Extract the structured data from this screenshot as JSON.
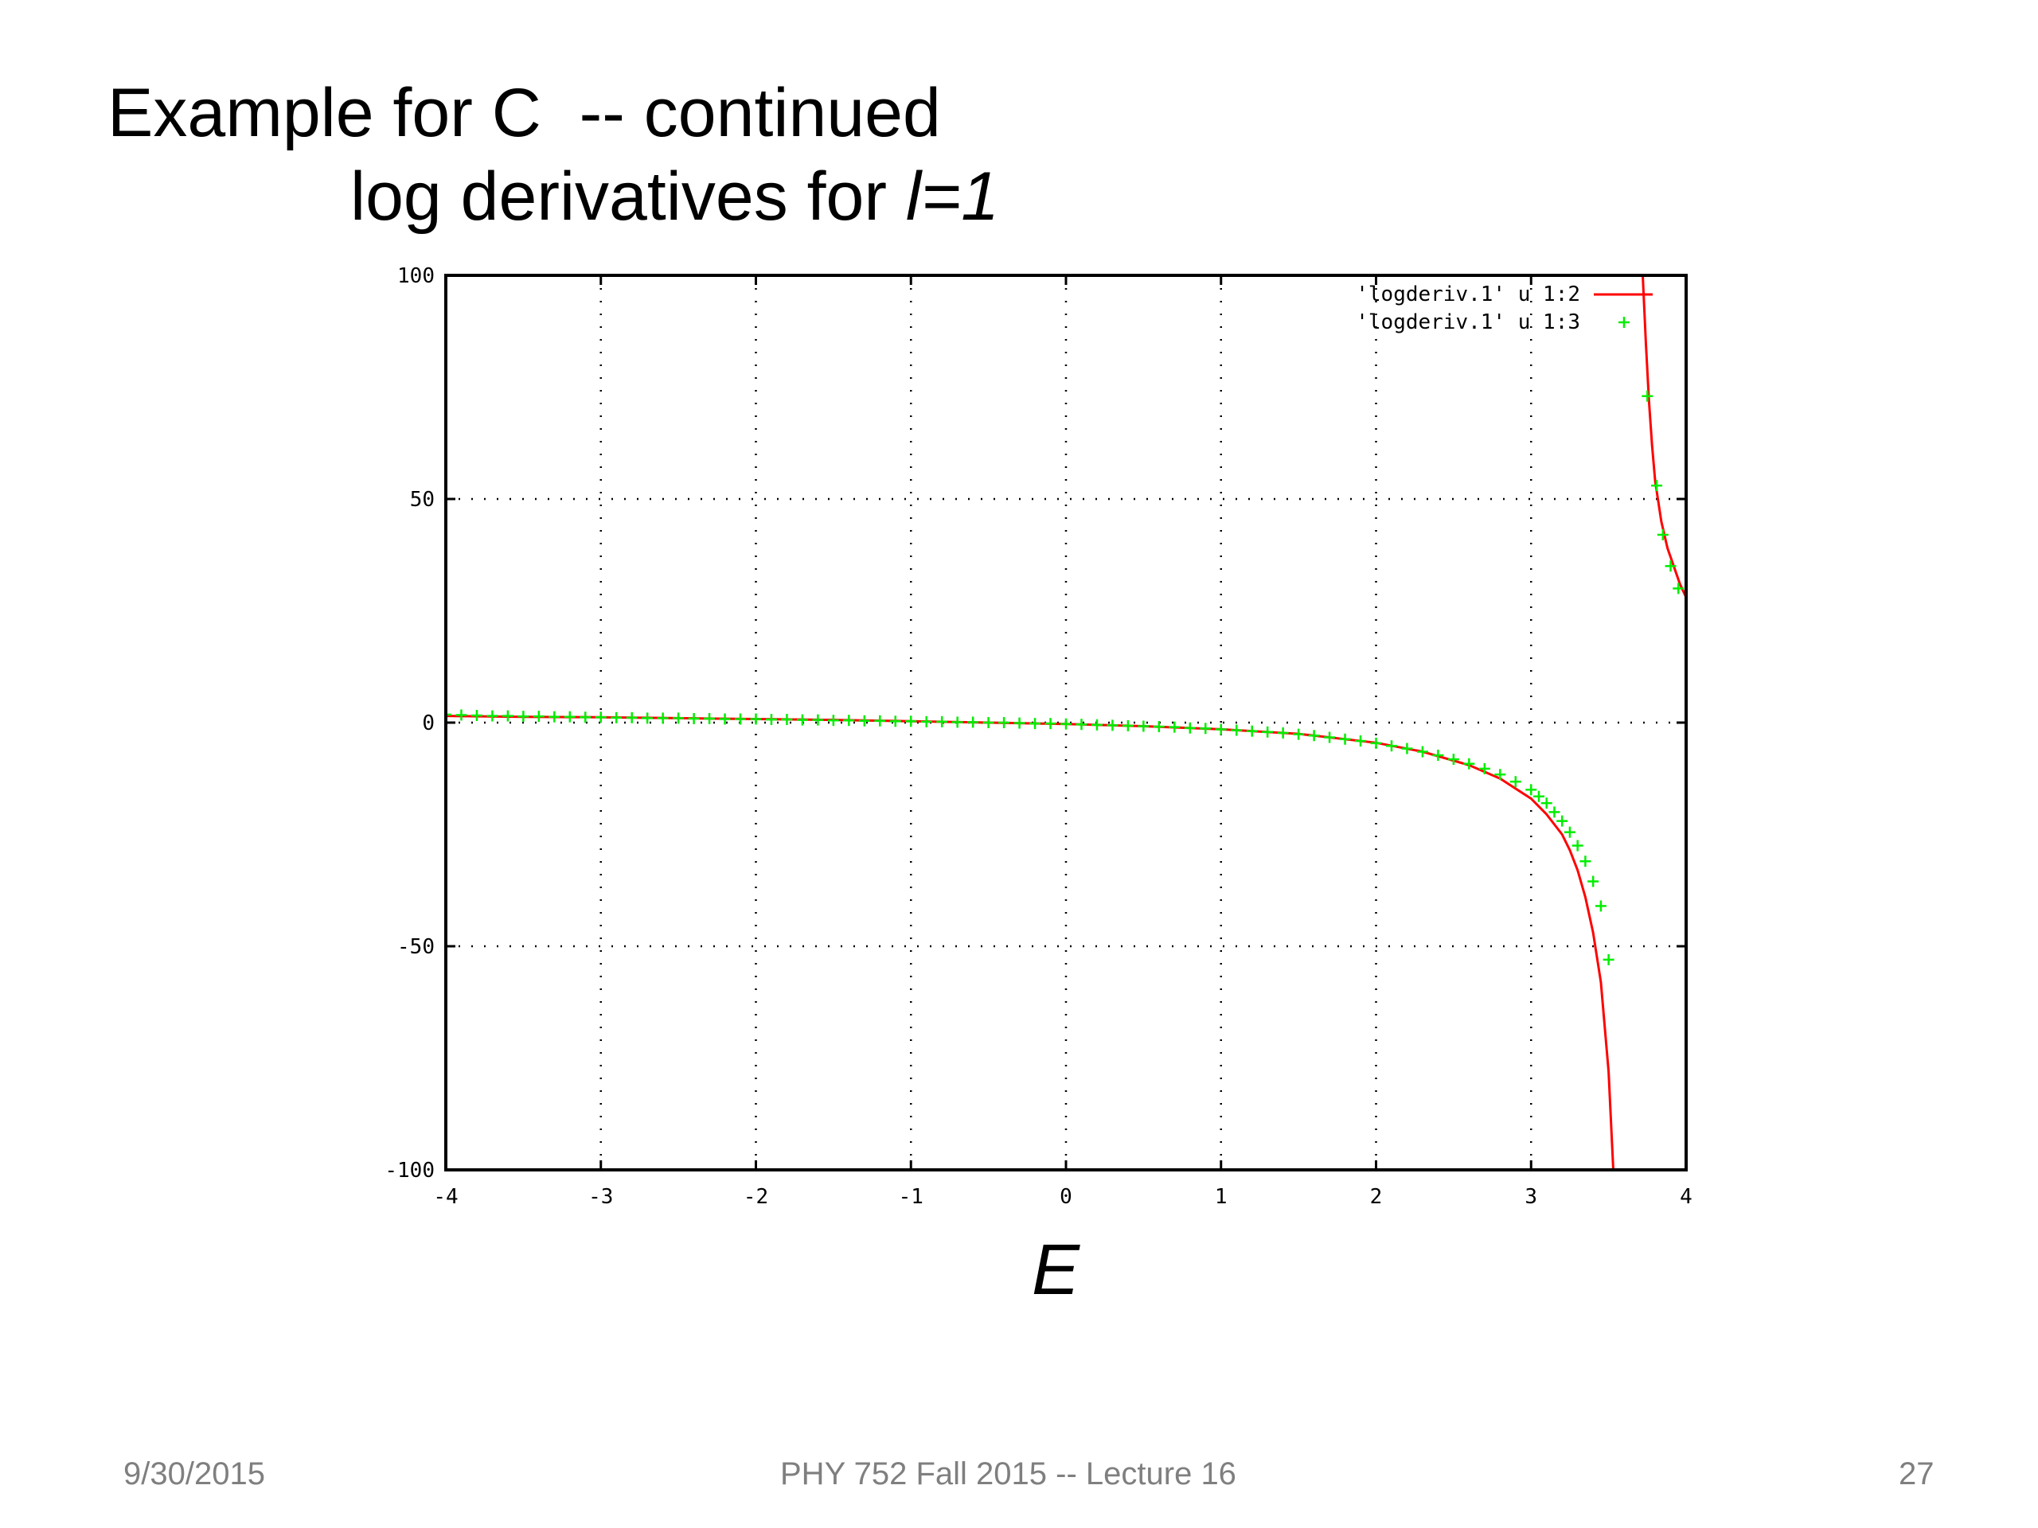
{
  "slide": {
    "title_line1": "Example for C  -- continued",
    "title_line2_prefix": "log derivatives for ",
    "title_line2_italic": "l=1"
  },
  "footer": {
    "date": "9/30/2015",
    "course": "PHY 752  Fall 2015 -- Lecture 16",
    "page": "27"
  },
  "colors": {
    "line": "#ff0000",
    "points": "#00ee00",
    "grid": "#000000",
    "frame": "#000000"
  },
  "chart_data": {
    "type": "line",
    "xlabel": "E",
    "xlim": [
      -4,
      4
    ],
    "ylim": [
      -100,
      100
    ],
    "xticks": [
      "-4",
      "-3",
      "-2",
      "-1",
      "0",
      "1",
      "2",
      "3",
      "4"
    ],
    "yticks": [
      "100",
      "50",
      "0",
      "-50",
      "-100"
    ],
    "grid": true,
    "legend_position": "top-right",
    "series": [
      {
        "name": "'logderiv.1' u 1:2",
        "style": "line",
        "branches": [
          {
            "x": [
              -4.0,
              -3.5,
              -3.0,
              -2.5,
              -2.0,
              -1.5,
              -1.0,
              -0.5,
              0.0,
              0.5,
              1.0,
              1.5,
              2.0,
              2.3,
              2.6,
              2.8,
              3.0,
              3.1,
              3.2,
              3.25,
              3.3,
              3.35,
              3.4,
              3.45,
              3.5,
              3.53
            ],
            "y": [
              1.5,
              1.3,
              1.2,
              1.0,
              0.8,
              0.6,
              0.3,
              0.0,
              -0.3,
              -0.8,
              -1.5,
              -2.5,
              -4.5,
              -6.5,
              -9.5,
              -12.5,
              -17.0,
              -20.5,
              -25.0,
              -28.5,
              -33.0,
              -39.0,
              -47.0,
              -58.0,
              -78.0,
              -100.0
            ]
          },
          {
            "x": [
              3.72,
              3.74,
              3.76,
              3.78,
              3.8,
              3.84,
              3.88,
              3.92,
              3.96,
              4.0
            ],
            "y": [
              100.0,
              85.0,
              72.0,
              62.0,
              54.0,
              45.0,
              39.0,
              35.0,
              31.0,
              28.0
            ]
          }
        ]
      },
      {
        "name": "'logderiv.1' u 1:3",
        "style": "points",
        "x": [
          -4.0,
          -3.9,
          -3.8,
          -3.7,
          -3.6,
          -3.5,
          -3.4,
          -3.3,
          -3.2,
          -3.1,
          -3.0,
          -2.9,
          -2.8,
          -2.7,
          -2.6,
          -2.5,
          -2.4,
          -2.3,
          -2.2,
          -2.1,
          -2.0,
          -1.9,
          -1.8,
          -1.7,
          -1.6,
          -1.5,
          -1.4,
          -1.3,
          -1.2,
          -1.1,
          -1.0,
          -0.9,
          -0.8,
          -0.7,
          -0.6,
          -0.5,
          -0.4,
          -0.3,
          -0.2,
          -0.1,
          0.0,
          0.1,
          0.2,
          0.3,
          0.4,
          0.5,
          0.6,
          0.7,
          0.8,
          0.9,
          1.0,
          1.1,
          1.2,
          1.3,
          1.4,
          1.5,
          1.6,
          1.7,
          1.8,
          1.9,
          2.0,
          2.1,
          2.2,
          2.3,
          2.4,
          2.5,
          2.6,
          2.7,
          2.8,
          2.9,
          3.0,
          3.05,
          3.1,
          3.15,
          3.2,
          3.25,
          3.3,
          3.35,
          3.4,
          3.45,
          3.5,
          3.75,
          3.81,
          3.85,
          3.9,
          3.95
        ],
        "y": [
          1.8,
          1.7,
          1.6,
          1.5,
          1.5,
          1.4,
          1.4,
          1.3,
          1.3,
          1.2,
          1.2,
          1.1,
          1.1,
          1.0,
          1.0,
          1.0,
          0.9,
          0.9,
          0.8,
          0.8,
          0.8,
          0.7,
          0.7,
          0.6,
          0.6,
          0.5,
          0.5,
          0.4,
          0.4,
          0.3,
          0.3,
          0.2,
          0.2,
          0.1,
          0.1,
          0.0,
          0.0,
          -0.1,
          -0.2,
          -0.2,
          -0.3,
          -0.4,
          -0.5,
          -0.6,
          -0.7,
          -0.8,
          -0.9,
          -1.0,
          -1.2,
          -1.3,
          -1.5,
          -1.7,
          -1.9,
          -2.1,
          -2.3,
          -2.6,
          -2.9,
          -3.3,
          -3.7,
          -4.1,
          -4.6,
          -5.2,
          -5.8,
          -6.5,
          -7.3,
          -8.2,
          -9.2,
          -10.3,
          -11.6,
          -13.2,
          -15.0,
          -16.5,
          -18.0,
          -20.0,
          -22.0,
          -24.5,
          -27.5,
          -31.0,
          -35.5,
          -41.0,
          -53.0,
          73.0,
          53.0,
          42.0,
          35.0,
          30.0
        ]
      }
    ]
  }
}
